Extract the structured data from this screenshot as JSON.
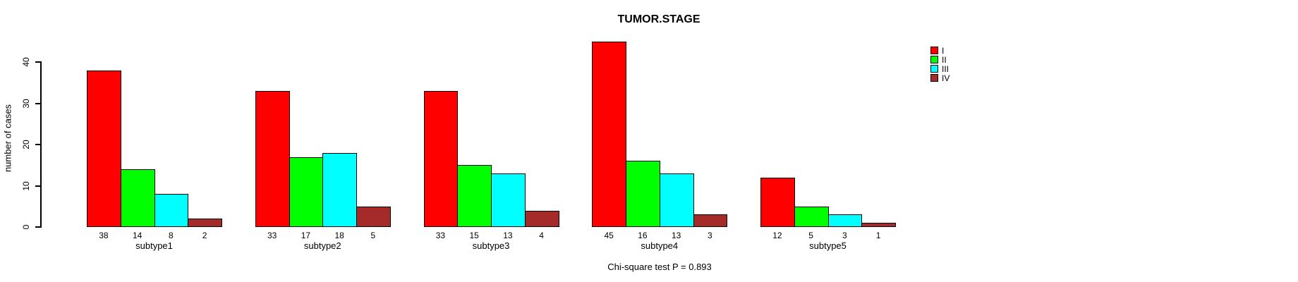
{
  "chart_data": {
    "type": "bar",
    "title": "TUMOR.STAGE",
    "ylabel": "number of cases",
    "xlabel": "",
    "categories": [
      "subtype1",
      "subtype2",
      "subtype3",
      "subtype4",
      "subtype5"
    ],
    "series": [
      {
        "name": "I",
        "color": "#ff0000",
        "values": [
          38,
          33,
          33,
          45,
          12
        ]
      },
      {
        "name": "II",
        "color": "#00ff00",
        "values": [
          14,
          17,
          15,
          16,
          5
        ]
      },
      {
        "name": "III",
        "color": "#00ffff",
        "values": [
          8,
          18,
          13,
          13,
          3
        ]
      },
      {
        "name": "IV",
        "color": "#a52a2a",
        "values": [
          2,
          5,
          4,
          3,
          1
        ]
      }
    ],
    "y_ticks": [
      0,
      10,
      20,
      30,
      40
    ],
    "ylim": [
      0,
      45
    ],
    "grid": false,
    "legend_position": "top-right",
    "bar_value_labels_shown": true,
    "annotation": "Chi-square test P = 0.893",
    "axis_color": "#000000",
    "background_color": "#ffffff"
  }
}
